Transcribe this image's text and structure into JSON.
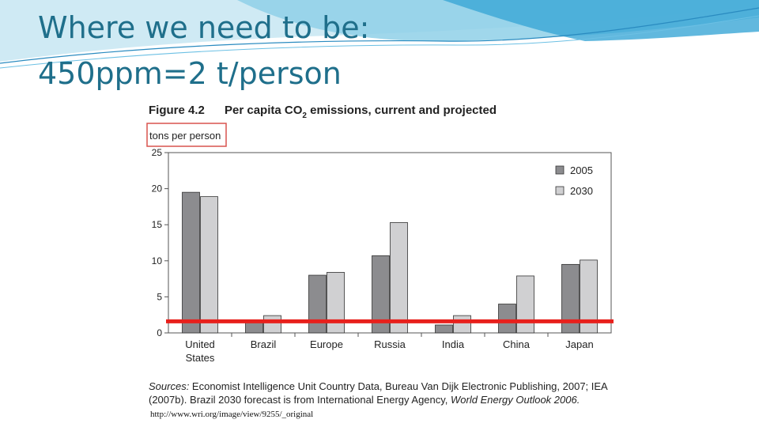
{
  "slide": {
    "title_line1": "Where we need to be:",
    "title_line2": "450ppm=2 t/person",
    "accent_color": "#1f6f8b"
  },
  "figure": {
    "label": "Figure 4.2",
    "title_main": "Per capita CO",
    "title_sub": "2",
    "title_rest": " emissions, current and projected",
    "unit_label": "tons per person",
    "unit_box_color": "#d9534f",
    "sources_lead": "Sources:",
    "sources_text1": " Economist Intelligence Unit Country Data, Bureau Van Dijk Electronic Publishing, 2007; IEA (2007b). Brazil 2030 forecast is from International Energy Agency, ",
    "sources_italic": "World Energy Outlook 2006.",
    "url": "http://www.wri.org/image/view/9255/_original"
  },
  "chart_data": {
    "type": "bar",
    "categories": [
      "United States",
      "Brazil",
      "Europe",
      "Russia",
      "India",
      "China",
      "Japan"
    ],
    "series": [
      {
        "name": "2005",
        "values": [
          19.5,
          1.8,
          8.0,
          10.7,
          1.1,
          4.0,
          9.5
        ],
        "color": "#8c8c8f"
      },
      {
        "name": "2030",
        "values": [
          18.9,
          2.4,
          8.4,
          15.3,
          2.4,
          7.9,
          10.1
        ],
        "color": "#d0d0d2"
      }
    ],
    "ylim": [
      0,
      25
    ],
    "yticks": [
      0,
      5,
      10,
      15,
      20,
      25
    ],
    "reference_line": {
      "value": 1.6,
      "color": "#e8201c"
    },
    "legend_position": "top-right",
    "grid": false
  }
}
